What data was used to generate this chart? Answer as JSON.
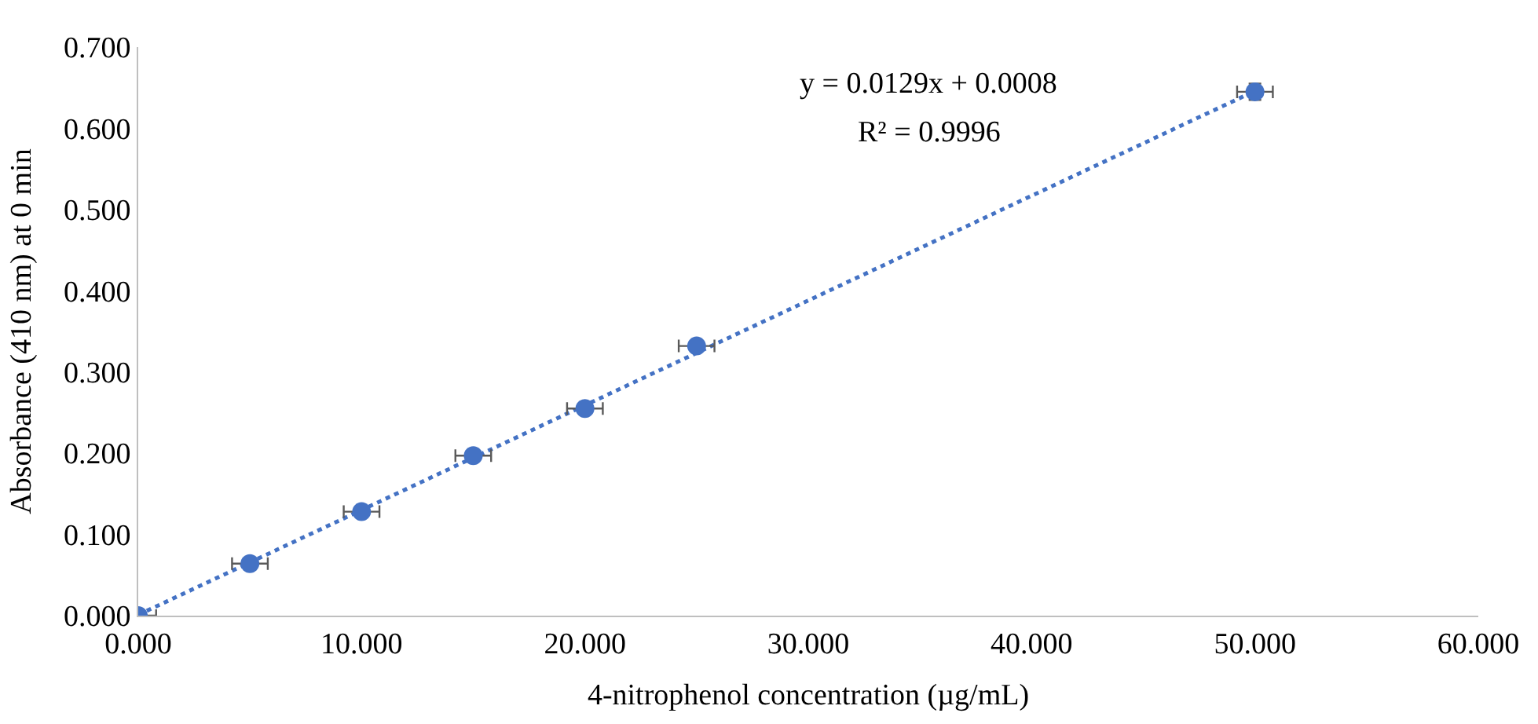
{
  "chart_data": {
    "type": "scatter",
    "xlabel": "4-nitrophenol concentration (µg/mL)",
    "ylabel": "Absorbance (410 nm) at 0 min",
    "annotations": [
      "y = 0.0129x + 0.0008",
      "R² = 0.9996"
    ],
    "series": [
      {
        "color": "#4472c4",
        "x": [
          0,
          5,
          10,
          15,
          20,
          25,
          50
        ],
        "values": [
          0.0,
          0.064,
          0.128,
          0.197,
          0.255,
          0.332,
          0.645
        ],
        "errors": [
          null,
          null,
          null,
          null,
          null,
          null,
          0.01
        ],
        "xerrors": [
          0.8,
          0.8,
          0.8,
          0.8,
          0.8,
          0.8,
          0.8
        ],
        "marker": "circle"
      },
      {
        "type": "line",
        "color": "#4472c4",
        "x": [
          0,
          50
        ],
        "values": [
          0.001,
          0.646
        ],
        "line_style": "dotted"
      }
    ],
    "xlim": [
      0,
      60
    ],
    "ylim": [
      0,
      0.7
    ],
    "xticks": [
      {
        "value": 0,
        "label": "0.000"
      },
      {
        "value": 10,
        "label": "10.000"
      },
      {
        "value": 20,
        "label": "20.000"
      },
      {
        "value": 30,
        "label": "30.000"
      },
      {
        "value": 40,
        "label": "40.000"
      },
      {
        "value": 50,
        "label": "50.000"
      },
      {
        "value": 60,
        "label": "60.000"
      }
    ],
    "yticks": [
      {
        "value": 0,
        "label": "0.000"
      },
      {
        "value": 0.1,
        "label": "0.100"
      },
      {
        "value": 0.2,
        "label": "0.200"
      },
      {
        "value": 0.3,
        "label": "0.300"
      },
      {
        "value": 0.4,
        "label": "0.400"
      },
      {
        "value": 0.5,
        "label": "0.500"
      },
      {
        "value": 0.6,
        "label": "0.600"
      },
      {
        "value": 0.7,
        "label": "0.700"
      }
    ]
  }
}
